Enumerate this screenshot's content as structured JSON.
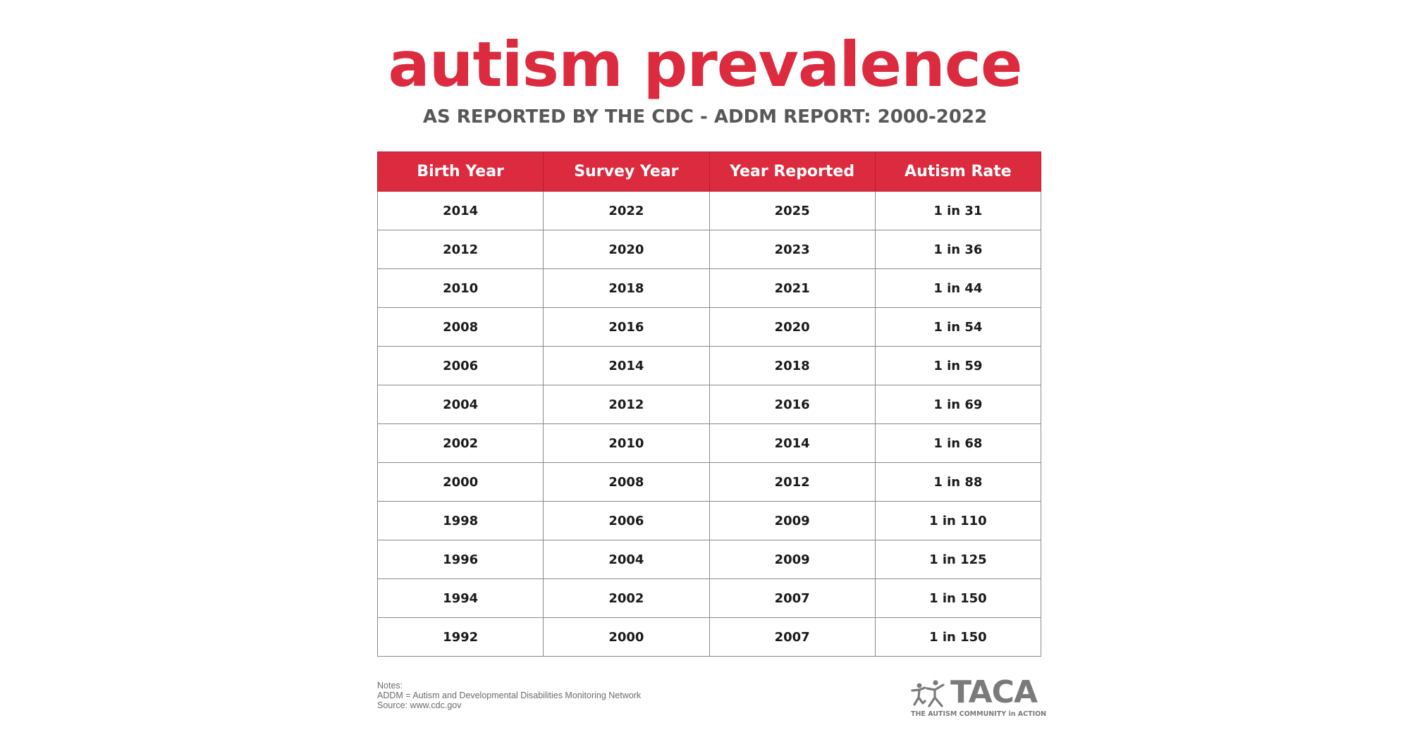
{
  "title": "autism prevalence",
  "subtitle": "AS REPORTED BY THE CDC - ADDM REPORT: 2000-2022",
  "colors": {
    "accent": "#dc2a3f",
    "subtitle": "#58585a",
    "logo": "#7a7a7c"
  },
  "table": {
    "headers": [
      "Birth Year",
      "Survey Year",
      "Year Reported",
      "Autism Rate"
    ],
    "rows": [
      [
        "2014",
        "2022",
        "2025",
        "1 in 31"
      ],
      [
        "2012",
        "2020",
        "2023",
        "1 in 36"
      ],
      [
        "2010",
        "2018",
        "2021",
        "1 in 44"
      ],
      [
        "2008",
        "2016",
        "2020",
        "1 in 54"
      ],
      [
        "2006",
        "2014",
        "2018",
        "1 in 59"
      ],
      [
        "2004",
        "2012",
        "2016",
        "1 in 69"
      ],
      [
        "2002",
        "2010",
        "2014",
        "1 in 68"
      ],
      [
        "2000",
        "2008",
        "2012",
        "1 in 88"
      ],
      [
        "1998",
        "2006",
        "2009",
        "1 in 110"
      ],
      [
        "1996",
        "2004",
        "2009",
        "1 in 125"
      ],
      [
        "1994",
        "2002",
        "2007",
        "1 in 150"
      ],
      [
        "1992",
        "2000",
        "2007",
        "1 in 150"
      ]
    ]
  },
  "notes": {
    "heading": "Notes:",
    "line1": "ADDM = Autism and Developmental Disabilities Monitoring Network",
    "line2": "Source: www.cdc.gov"
  },
  "logo": {
    "icon": "people-figures-icon",
    "name": "TACA",
    "tagline": "THE AUTISM COMMUNITY in ACTION"
  }
}
